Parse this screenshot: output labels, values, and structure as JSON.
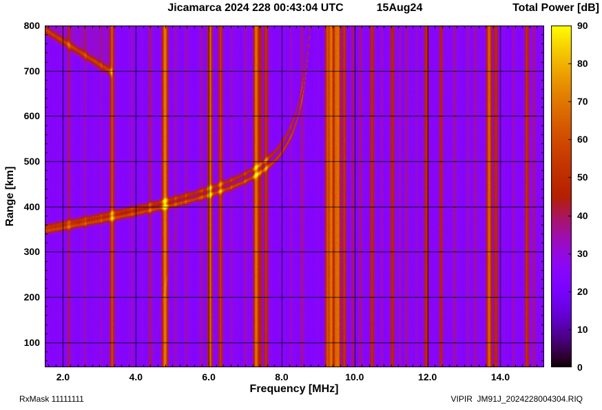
{
  "chart_data": {
    "type": "heatmap",
    "title": "Jicamarca 2024 228 00:43:04 UTC",
    "date_label": "15Aug24",
    "colorbar_title": "Total Power [dB]",
    "xlabel": "Frequency [MHz]",
    "ylabel": "Range [km]",
    "footer_left": "RxMask 11111111",
    "footer_right": "VIPIR  JM91J_2024228004304.RIQ",
    "xlim": [
      1.5,
      15.2
    ],
    "ylim": [
      45,
      800
    ],
    "zlim": [
      0,
      90
    ],
    "x_major_ticks": [
      2,
      4,
      6,
      8,
      10,
      12,
      14
    ],
    "x_tick_labels": [
      "2.0",
      "4.0",
      "6.0",
      "8.0",
      "10.0",
      "12.0",
      "14.0"
    ],
    "x_minor_step": 0.2,
    "y_major_ticks": [
      100,
      200,
      300,
      400,
      500,
      600,
      700,
      800
    ],
    "y_tick_labels": [
      "100",
      "200",
      "300",
      "400",
      "500",
      "600",
      "700",
      "800"
    ],
    "y_minor_step": 20,
    "colorbar_ticks": [
      0,
      10,
      20,
      30,
      40,
      50,
      60,
      70,
      80,
      90
    ],
    "colorbar_tick_labels": [
      "0",
      "10",
      "20",
      "30",
      "40",
      "50",
      "60",
      "70",
      "80",
      "90"
    ],
    "colormap": "gnuplot",
    "background_db": 25,
    "rfi_stripes": [
      {
        "f": 2.16,
        "w": 0.03,
        "a": 15
      },
      {
        "f": 2.62,
        "w": 0.025,
        "a": 8
      },
      {
        "f": 3.05,
        "w": 0.025,
        "a": 8
      },
      {
        "f": 3.35,
        "w": 0.04,
        "a": 34
      },
      {
        "f": 3.9,
        "w": 0.025,
        "a": 8
      },
      {
        "f": 4.39,
        "w": 0.03,
        "a": 16
      },
      {
        "f": 4.8,
        "w": 0.055,
        "a": 45
      },
      {
        "f": 5.09,
        "w": 0.025,
        "a": 10
      },
      {
        "f": 5.37,
        "w": 0.025,
        "a": 10
      },
      {
        "f": 5.8,
        "w": 0.03,
        "a": 10
      },
      {
        "f": 6.03,
        "w": 0.045,
        "a": 42
      },
      {
        "f": 6.32,
        "w": 0.04,
        "a": 30
      },
      {
        "f": 6.62,
        "w": 0.025,
        "a": 9
      },
      {
        "f": 7.0,
        "w": 0.025,
        "a": 10
      },
      {
        "f": 7.3,
        "w": 0.05,
        "a": 45
      },
      {
        "f": 7.42,
        "w": 0.03,
        "a": 18
      },
      {
        "f": 7.57,
        "w": 0.04,
        "a": 28
      },
      {
        "f": 8.25,
        "w": 0.025,
        "a": 8
      },
      {
        "f": 8.55,
        "w": 0.03,
        "a": 14
      },
      {
        "f": 9.25,
        "w": 0.04,
        "a": 36
      },
      {
        "f": 9.36,
        "w": 0.04,
        "a": 45
      },
      {
        "f": 9.47,
        "w": 0.03,
        "a": 30
      },
      {
        "f": 9.55,
        "w": 0.045,
        "a": 44
      },
      {
        "f": 9.72,
        "w": 0.035,
        "a": 30
      },
      {
        "f": 9.95,
        "w": 0.03,
        "a": 14
      },
      {
        "f": 10.16,
        "w": 0.03,
        "a": 14
      },
      {
        "f": 10.48,
        "w": 0.04,
        "a": 26
      },
      {
        "f": 10.75,
        "w": 0.025,
        "a": 10
      },
      {
        "f": 11.04,
        "w": 0.04,
        "a": 26
      },
      {
        "f": 11.25,
        "w": 0.025,
        "a": 9
      },
      {
        "f": 11.42,
        "w": 0.03,
        "a": 14
      },
      {
        "f": 11.7,
        "w": 0.025,
        "a": 9
      },
      {
        "f": 11.97,
        "w": 0.04,
        "a": 27
      },
      {
        "f": 12.37,
        "w": 0.035,
        "a": 24
      },
      {
        "f": 12.74,
        "w": 0.03,
        "a": 11
      },
      {
        "f": 13.1,
        "w": 0.025,
        "a": 9
      },
      {
        "f": 13.31,
        "w": 0.03,
        "a": 13
      },
      {
        "f": 13.69,
        "w": 0.05,
        "a": 42
      },
      {
        "f": 13.88,
        "w": 0.04,
        "a": 26
      },
      {
        "f": 14.35,
        "w": 0.025,
        "a": 9
      },
      {
        "f": 14.73,
        "w": 0.04,
        "a": 27
      },
      {
        "f": 14.92,
        "w": 0.03,
        "a": 15
      }
    ],
    "trace": {
      "base_km": 345,
      "slope": 12.8,
      "asym": 117.4,
      "fc": 9.1,
      "fmax": 8.85,
      "sigma_km": 4,
      "amp": 33,
      "amp2": 26,
      "second_offset": 10,
      "second_spread": 0.06
    },
    "streaks": [
      {
        "f0": 1.5,
        "r0": 790,
        "f1": 3.35,
        "r1": 695,
        "sigma_km": 6,
        "a": 28,
        "haze": 6
      },
      {
        "f0": 4.39,
        "r0": 46,
        "f1": 5.3,
        "r1": 430,
        "sigma_km": 5,
        "a": 6
      }
    ]
  }
}
